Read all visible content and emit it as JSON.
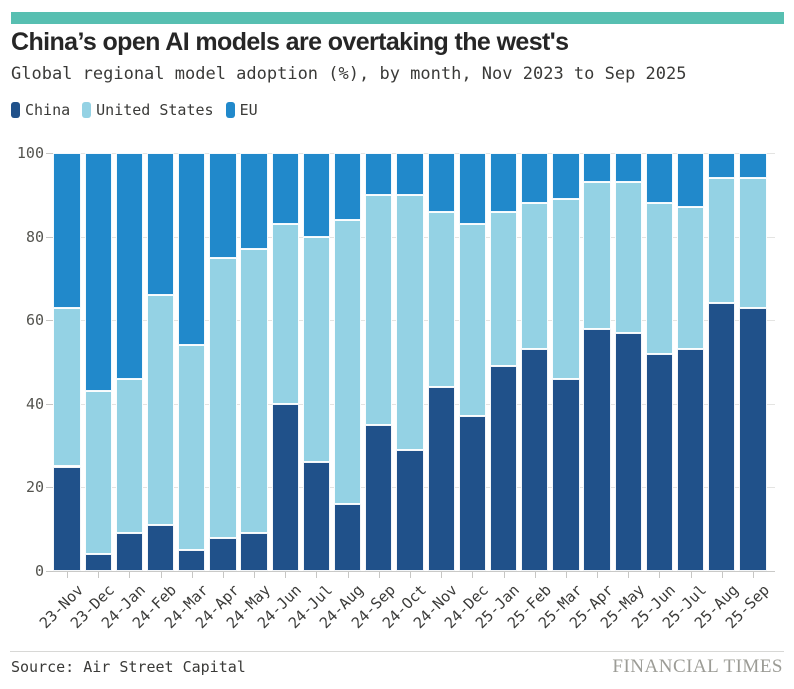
{
  "accent": {
    "bar_color": "#57bfb1"
  },
  "header": {
    "title": "China’s open AI models are overtaking the west's",
    "subtitle": "Global regional model adoption (%), by month, Nov 2023 to Sep 2025"
  },
  "legend": [
    {
      "label": "China",
      "color": "#20518a"
    },
    {
      "label": "United States",
      "color": "#94d2e4"
    },
    {
      "label": "EU",
      "color": "#2189cb"
    }
  ],
  "chart_data": {
    "type": "bar",
    "stacked": true,
    "title": "China’s open AI models are overtaking the west's",
    "subtitle": "Global regional model adoption (%), by month, Nov 2023 to Sep 2025",
    "categories": [
      "23-Nov",
      "23-Dec",
      "24-Jan",
      "24-Feb",
      "24-Mar",
      "24-Apr",
      "24-May",
      "24-Jun",
      "24-Jul",
      "24-Aug",
      "24-Sep",
      "24-Oct",
      "24-Nov",
      "24-Dec",
      "25-Jan",
      "25-Feb",
      "25-Mar",
      "25-Apr",
      "25-May",
      "25-Jun",
      "25-Jul",
      "25-Aug",
      "25-Sep"
    ],
    "series": [
      {
        "name": "China",
        "color": "#20518a",
        "values": [
          25,
          4,
          9,
          11,
          5,
          8,
          9,
          40,
          26,
          16,
          35,
          29,
          44,
          37,
          49,
          53,
          46,
          58,
          57,
          52,
          53,
          64,
          63
        ]
      },
      {
        "name": "United States",
        "color": "#94d2e4",
        "values": [
          38,
          39,
          37,
          55,
          49,
          67,
          68,
          43,
          54,
          68,
          55,
          61,
          42,
          46,
          37,
          35,
          43,
          35,
          36,
          36,
          34,
          30,
          31
        ]
      },
      {
        "name": "EU",
        "color": "#2189cb",
        "values": [
          37,
          57,
          54,
          34,
          46,
          25,
          23,
          17,
          20,
          16,
          10,
          10,
          14,
          17,
          14,
          12,
          11,
          7,
          7,
          12,
          13,
          6,
          6
        ]
      }
    ],
    "ylabel": "",
    "xlabel": "",
    "ylim": [
      0,
      100
    ],
    "yticks": [
      0,
      20,
      40,
      60,
      80,
      100
    ],
    "grid": true,
    "legend_position": "top-left"
  },
  "footer": {
    "source": "Source: Air Street Capital",
    "brand": "FINANCIAL TIMES"
  }
}
